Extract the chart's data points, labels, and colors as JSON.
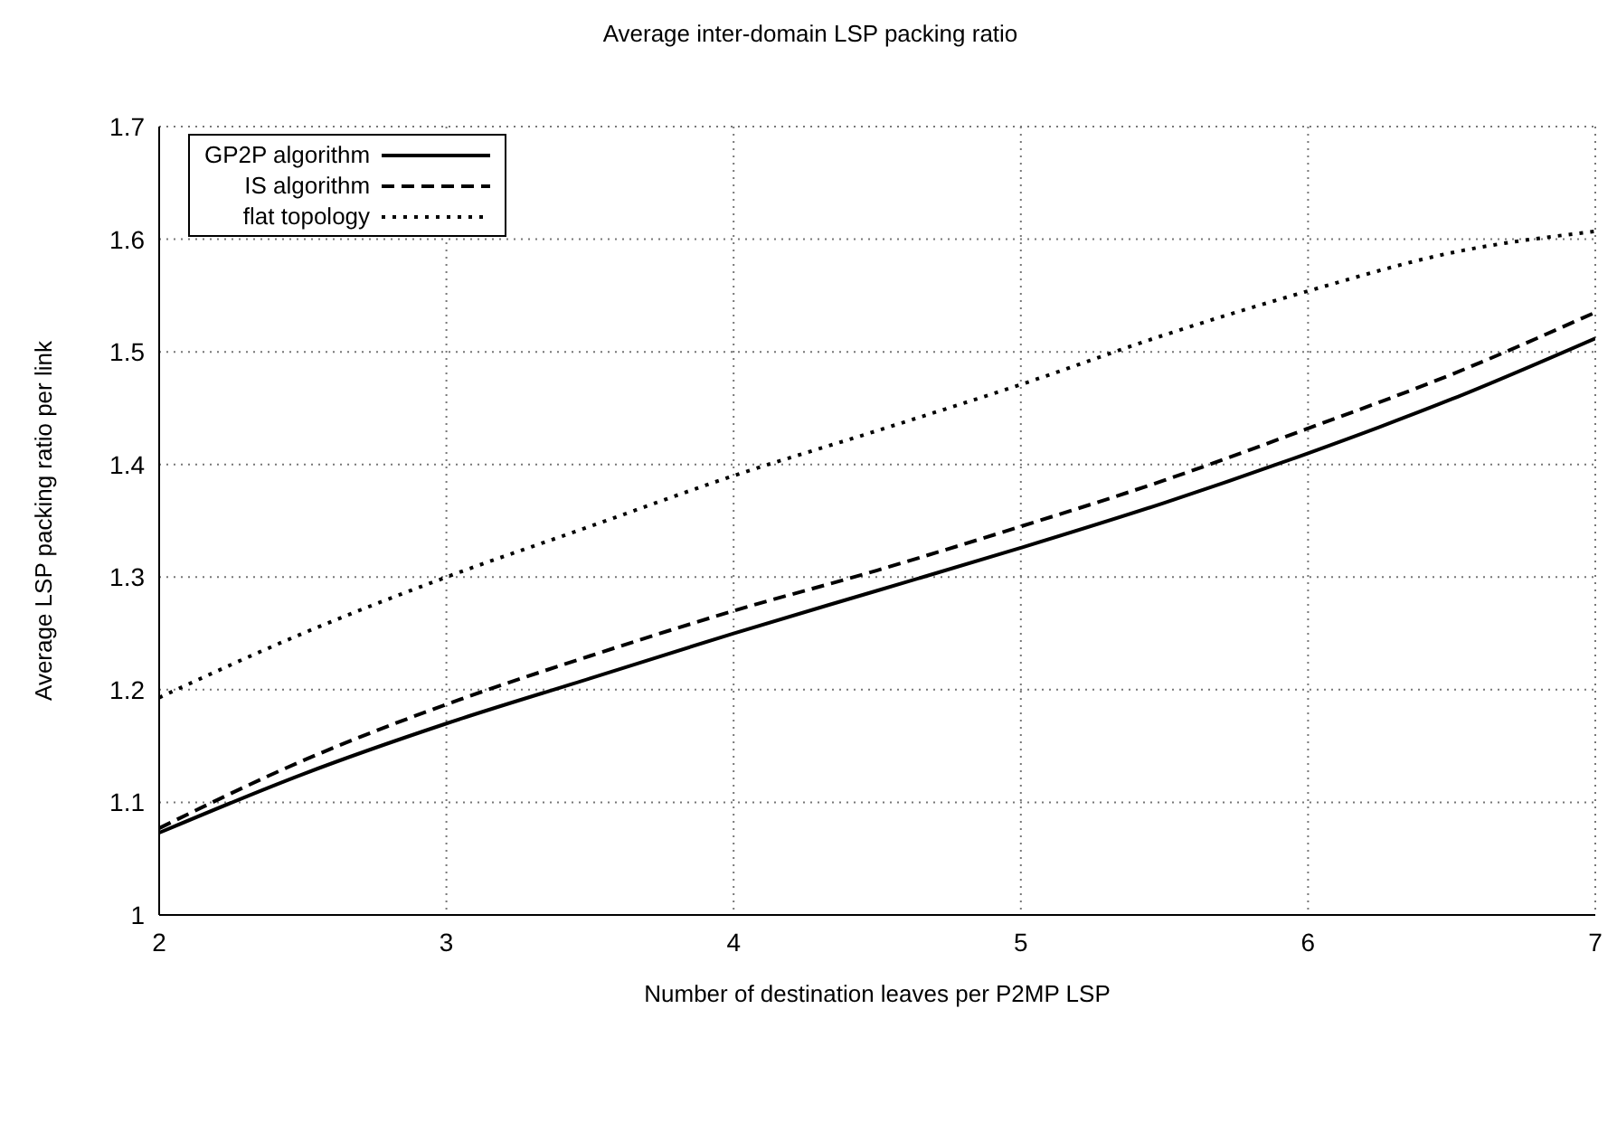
{
  "chart_data": {
    "type": "line",
    "title": "Average inter-domain LSP packing ratio",
    "xlabel": "Number of destination leaves per P2MP LSP",
    "ylabel": "Average LSP packing ratio per link",
    "x": [
      2,
      2.5,
      3,
      3.5,
      4,
      4.5,
      5,
      5.5,
      6,
      6.5,
      7
    ],
    "series": [
      {
        "name": "GP2P algorithm",
        "color": "#000000",
        "line_style": "solid",
        "values": [
          1.073,
          1.125,
          1.17,
          1.21,
          1.25,
          1.288,
          1.326,
          1.366,
          1.41,
          1.458,
          1.512
        ]
      },
      {
        "name": "IS algorithm",
        "color": "#000000",
        "line_style": "dashed",
        "values": [
          1.077,
          1.137,
          1.187,
          1.23,
          1.27,
          1.306,
          1.345,
          1.386,
          1.432,
          1.48,
          1.535
        ]
      },
      {
        "name": "flat topology",
        "color": "#000000",
        "line_style": "dotted",
        "values": [
          1.193,
          1.25,
          1.3,
          1.345,
          1.39,
          1.43,
          1.471,
          1.515,
          1.554,
          1.588,
          1.607
        ]
      }
    ],
    "xlim": [
      2,
      7
    ],
    "xticks": [
      2,
      3,
      4,
      5,
      6,
      7
    ],
    "ylim": [
      1,
      1.7
    ],
    "yticks": [
      1,
      1.1,
      1.2,
      1.3,
      1.4,
      1.5,
      1.6,
      1.7
    ],
    "grid": true,
    "legend": "top left",
    "marker": "none"
  }
}
